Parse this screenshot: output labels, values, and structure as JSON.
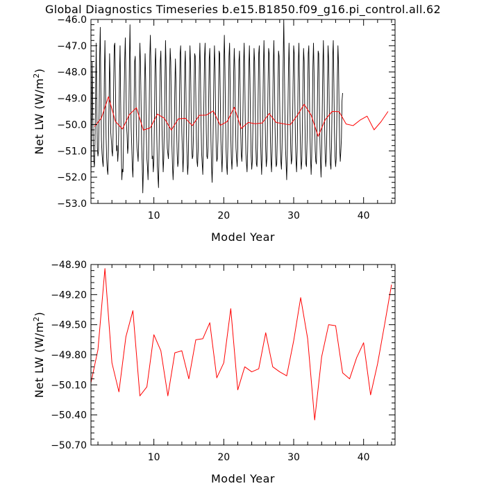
{
  "title": "Global Diagnostics Timeseries b.e15.B1850.f09_g16.pi_control.all.62",
  "chart_data": [
    {
      "type": "line",
      "xlabel": "Model Year",
      "ylabel_main": "Net LW (W/m",
      "ylabel_sup": "2",
      "ylabel_end": ")",
      "xlim": [
        1,
        44.5
      ],
      "ylim": [
        -53.0,
        -46.0
      ],
      "x_ticks": [
        10,
        20,
        30,
        40
      ],
      "y_ticks": [
        -53.0,
        -52.0,
        -51.0,
        -50.0,
        -49.0,
        -48.0,
        -47.0,
        -46.0
      ],
      "y_tick_labels": [
        "−53.0",
        "−52.0",
        "−51.0",
        "−50.0",
        "−49.0",
        "−48.0",
        "−47.0",
        "−46.0"
      ],
      "series": [
        {
          "color": "#000000",
          "x_start": 1.0,
          "x_step": 0.08333,
          "values": [
            -52.0,
            -50.2,
            -47.6,
            -49.5,
            -50.8,
            -51.4,
            -51.6,
            -50.6,
            -49.0,
            -46.9,
            -49.2,
            -50.9,
            -51.2,
            -51.0,
            -49.6,
            -47.4,
            -46.3,
            -48.6,
            -50.6,
            -51.1,
            -51.4,
            -51.6,
            -50.3,
            -48.1,
            -46.8,
            -48.5,
            -50.5,
            -51.3,
            -51.7,
            -51.9,
            -50.9,
            -49.2,
            -47.3,
            -48.4,
            -50.3,
            -50.6,
            -51.0,
            -51.2,
            -50.4,
            -48.4,
            -47.0,
            -46.9,
            -48.5,
            -50.0,
            -51.0,
            -50.8,
            -51.4,
            -51.0,
            -49.9,
            -48.1,
            -47.0,
            -49.1,
            -50.9,
            -52.1,
            -51.7,
            -51.8,
            -50.5,
            -48.8,
            -47.5,
            -46.7,
            -48.3,
            -50.0,
            -50.4,
            -51.1,
            -50.8,
            -49.8,
            -47.6,
            -46.2,
            -48.2,
            -50.1,
            -50.8,
            -51.6,
            -52.0,
            -51.1,
            -49.2,
            -47.6,
            -47.4,
            -48.6,
            -50.3,
            -50.9,
            -51.1,
            -51.4,
            -50.6,
            -48.3,
            -46.9,
            -47.6,
            -49.1,
            -50.7,
            -51.5,
            -52.6,
            -51.7,
            -50.2,
            -48.4,
            -47.3,
            -48.3,
            -50.3,
            -51.3,
            -51.6,
            -52.1,
            -51.2,
            -49.4,
            -47.4,
            -46.6,
            -47.8,
            -49.7,
            -51.3,
            -51.2,
            -51.8,
            -51.4,
            -49.8,
            -47.8,
            -47.1,
            -48.2,
            -50.4,
            -51.6,
            -52.0,
            -52.4,
            -50.8,
            -49.1,
            -47.6,
            -47.2,
            -48.5,
            -50.2,
            -51.0,
            -51.8,
            -51.3,
            -50.0,
            -48.4,
            -46.8,
            -47.8,
            -49.9,
            -50.9,
            -51.1,
            -51.3,
            -50.5,
            -48.3,
            -47.1,
            -47.6,
            -49.3,
            -50.8,
            -51.6,
            -52.1,
            -51.5,
            -50.2,
            -48.6,
            -47.5,
            -48.4,
            -50.1,
            -51.1,
            -51.6,
            -51.4,
            -50.6,
            -48.9,
            -47.3,
            -47.0,
            -48.8,
            -50.3,
            -51.0,
            -51.8,
            -51.2,
            -49.5,
            -47.8,
            -47.2,
            -48.6,
            -50.4,
            -51.2,
            -51.9,
            -51.5,
            -50.1,
            -48.3,
            -47.0,
            -47.7,
            -49.5,
            -50.9,
            -51.3,
            -51.2,
            -50.4,
            -48.6,
            -47.3,
            -47.4,
            -48.9,
            -50.5,
            -51.4,
            -51.6,
            -51.0,
            -49.6,
            -47.8,
            -46.9,
            -48.1,
            -50.0,
            -51.1,
            -51.5,
            -51.9,
            -50.7,
            -48.9,
            -47.4,
            -46.9,
            -48.6,
            -50.3,
            -51.2,
            -51.3,
            -50.9,
            -49.2,
            -47.5,
            -47.1,
            -48.8,
            -50.6,
            -51.6,
            -52.2,
            -51.4,
            -49.9,
            -48.1,
            -47.0,
            -47.8,
            -49.6,
            -50.9,
            -51.4,
            -51.3,
            -50.6,
            -48.9,
            -47.2,
            -47.3,
            -48.9,
            -50.6,
            -51.2,
            -51.8,
            -51.1,
            -49.5,
            -47.7,
            -46.6,
            -47.8,
            -49.8,
            -51.0,
            -51.6,
            -51.9,
            -50.8,
            -49.1,
            -47.4,
            -46.9,
            -48.5,
            -50.4,
            -51.3,
            -51.7,
            -51.2,
            -49.8,
            -48.0,
            -47.1,
            -47.9,
            -49.7,
            -50.9,
            -51.3,
            -51.6,
            -50.9,
            -49.2,
            -47.6,
            -47.2,
            -48.6,
            -50.2,
            -51.1,
            -51.4,
            -50.9,
            -49.4,
            -47.7,
            -46.9,
            -48.1,
            -50.0,
            -51.1,
            -51.5,
            -51.8,
            -51.0,
            -49.5,
            -47.8,
            -47.0,
            -48.3,
            -50.1,
            -51.2,
            -51.7,
            -51.4,
            -50.1,
            -48.4,
            -47.1,
            -47.6,
            -49.4,
            -50.8,
            -51.5,
            -51.6,
            -50.7,
            -49.0,
            -47.3,
            -47.0,
            -48.6,
            -50.4,
            -51.3,
            -51.9,
            -51.1,
            -49.6,
            -47.9,
            -46.8,
            -47.9,
            -49.8,
            -51.0,
            -51.6,
            -51.3,
            -50.2,
            -48.5,
            -47.1,
            -47.3,
            -48.9,
            -50.5,
            -51.4,
            -51.8,
            -51.0,
            -49.4,
            -47.7,
            -46.8,
            -48.2,
            -50.1,
            -51.2,
            -51.6,
            -51.5,
            -50.3,
            -48.6,
            -47.2,
            -47.4,
            -49.1,
            -50.7,
            -51.4,
            -51.7,
            -50.9,
            -49.3,
            -47.6,
            -46.0,
            -47.7,
            -49.6,
            -50.9,
            -51.5,
            -52.1,
            -51.2,
            -49.7,
            -48.0,
            -46.9,
            -48.0,
            -49.9,
            -51.0,
            -51.5,
            -51.3,
            -50.1,
            -48.4,
            -47.0,
            -47.3,
            -49.0,
            -50.6,
            -51.4,
            -51.8,
            -51.0,
            -49.4,
            -47.6,
            -46.9,
            -48.3,
            -50.2,
            -51.2,
            -51.7,
            -51.4,
            -50.0,
            -48.3,
            -47.1,
            -47.6,
            -49.4,
            -50.9,
            -51.5,
            -51.6,
            -50.6,
            -48.9,
            -47.3,
            -47.0,
            -48.7,
            -50.4,
            -51.3,
            -51.9,
            -51.2,
            -49.6,
            -47.8,
            -46.9,
            -48.0,
            -49.9,
            -51.0,
            -51.4,
            -51.5,
            -50.4,
            -48.7,
            -47.2,
            -47.3,
            -49.0,
            -50.6,
            -51.4,
            -52.0,
            -51.1,
            -49.5,
            -47.8,
            -46.8,
            -48.1,
            -50.0,
            -51.1,
            -51.6,
            -51.3,
            -50.2,
            -48.5,
            -47.0,
            -47.5,
            -49.2,
            -50.8,
            -51.5,
            -51.7,
            -50.8,
            -49.1,
            -47.4,
            -46.8,
            -48.4,
            -50.3,
            -51.2,
            -51.6,
            -51.3,
            -49.9,
            -48.2,
            -47.0,
            -47.7,
            -49.5,
            -50.9,
            -51.4,
            -51.0,
            -50.5,
            -49.1,
            -48.8
          ]
        },
        {
          "color": "#ff0000",
          "x": [
            1.5,
            2.5,
            3.5,
            4.5,
            5.5,
            6.5,
            7.5,
            8.5,
            9.5,
            10.5,
            11.5,
            12.5,
            13.5,
            14.5,
            15.5,
            16.5,
            17.5,
            18.5,
            19.5,
            20.5,
            21.5,
            22.5,
            23.5,
            24.5,
            25.5,
            26.5,
            27.5,
            28.5,
            29.5,
            30.5,
            31.5,
            32.5,
            33.5,
            34.5,
            35.5,
            36.5,
            37.5,
            38.5,
            39.5,
            40.5,
            41.5,
            42.5,
            43.5
          ],
          "values": [
            -50.08,
            -49.75,
            -48.94,
            -49.88,
            -50.17,
            -49.62,
            -49.36,
            -50.21,
            -50.12,
            -49.6,
            -49.76,
            -50.21,
            -49.78,
            -49.76,
            -50.04,
            -49.65,
            -49.64,
            -49.48,
            -50.03,
            -49.88,
            -49.34,
            -50.15,
            -49.92,
            -49.97,
            -49.94,
            -49.58,
            -49.92,
            -49.97,
            -50.01,
            -49.66,
            -49.23,
            -49.64,
            -50.45,
            -49.82,
            -49.5,
            -49.51,
            -49.98,
            -50.04,
            -49.83,
            -49.68,
            -50.2,
            -49.89,
            -49.5
          ]
        }
      ]
    },
    {
      "type": "line",
      "xlabel": "Model Year",
      "ylabel_main": "Net LW (W/m",
      "ylabel_sup": "2",
      "ylabel_end": ")",
      "xlim": [
        1,
        44.5
      ],
      "ylim": [
        -50.7,
        -48.9
      ],
      "x_ticks": [
        10,
        20,
        30,
        40
      ],
      "y_ticks": [
        -50.7,
        -50.4,
        -50.1,
        -49.8,
        -49.5,
        -49.2,
        -48.9
      ],
      "y_tick_labels": [
        "−50.70",
        "−50.40",
        "−50.10",
        "−49.80",
        "−49.50",
        "−49.20",
        "−48.90"
      ],
      "series": [
        {
          "color": "#ff0000",
          "x": [
            1,
            2,
            3,
            4,
            5,
            6,
            7,
            8,
            9,
            10,
            11,
            12,
            13,
            14,
            15,
            16,
            17,
            18,
            19,
            20,
            21,
            22,
            23,
            24,
            25,
            26,
            27,
            28,
            29,
            30,
            31,
            32,
            33,
            34,
            35,
            36,
            37,
            38,
            39,
            40,
            41,
            42,
            43,
            44
          ],
          "values": [
            -50.08,
            -49.75,
            -48.94,
            -49.88,
            -50.17,
            -49.62,
            -49.36,
            -50.21,
            -50.12,
            -49.6,
            -49.76,
            -50.21,
            -49.78,
            -49.76,
            -50.04,
            -49.65,
            -49.64,
            -49.48,
            -50.03,
            -49.88,
            -49.34,
            -50.15,
            -49.92,
            -49.97,
            -49.94,
            -49.58,
            -49.92,
            -49.97,
            -50.01,
            -49.66,
            -49.23,
            -49.64,
            -50.45,
            -49.82,
            -49.5,
            -49.51,
            -49.98,
            -50.04,
            -49.83,
            -49.68,
            -50.2,
            -49.89,
            -49.5,
            -49.1
          ]
        }
      ]
    }
  ]
}
